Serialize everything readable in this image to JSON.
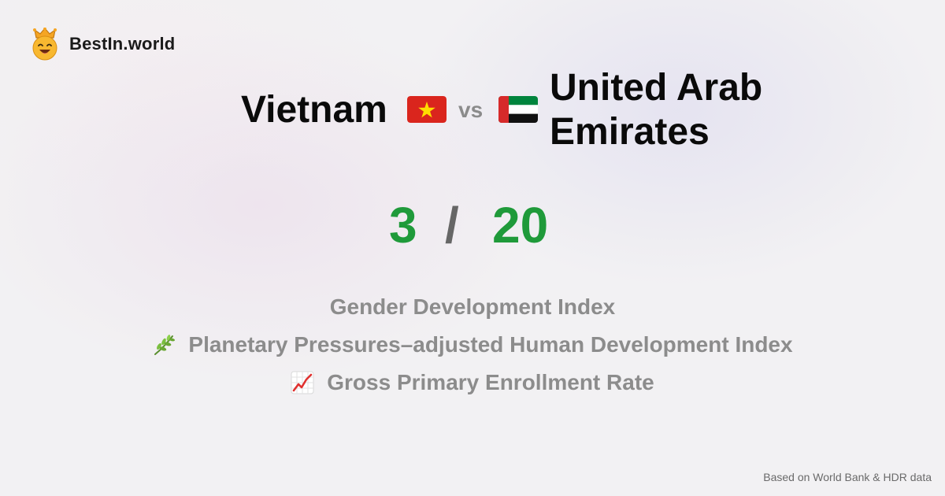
{
  "brand": {
    "name": "BestIn.world",
    "logo_icon": "crown-smiley-icon"
  },
  "comparison": {
    "country_a": "Vietnam",
    "country_a_flag": "vietnam-flag-icon",
    "vs": "vs",
    "country_b": "United Arab Emirates",
    "country_b_flag": "uae-flag-icon"
  },
  "score": {
    "a": "3",
    "separator": "/",
    "b": "20",
    "color": "#1f9a3a"
  },
  "indices": [
    {
      "icon": "",
      "label": "Gender Development Index"
    },
    {
      "icon": "herb-icon",
      "label": "Planetary Pressures–adjusted Human Development Index"
    },
    {
      "icon": "chart-increasing-icon",
      "label": "Gross Primary Enrollment Rate"
    }
  ],
  "footer": {
    "note": "Based on World Bank & HDR data"
  }
}
